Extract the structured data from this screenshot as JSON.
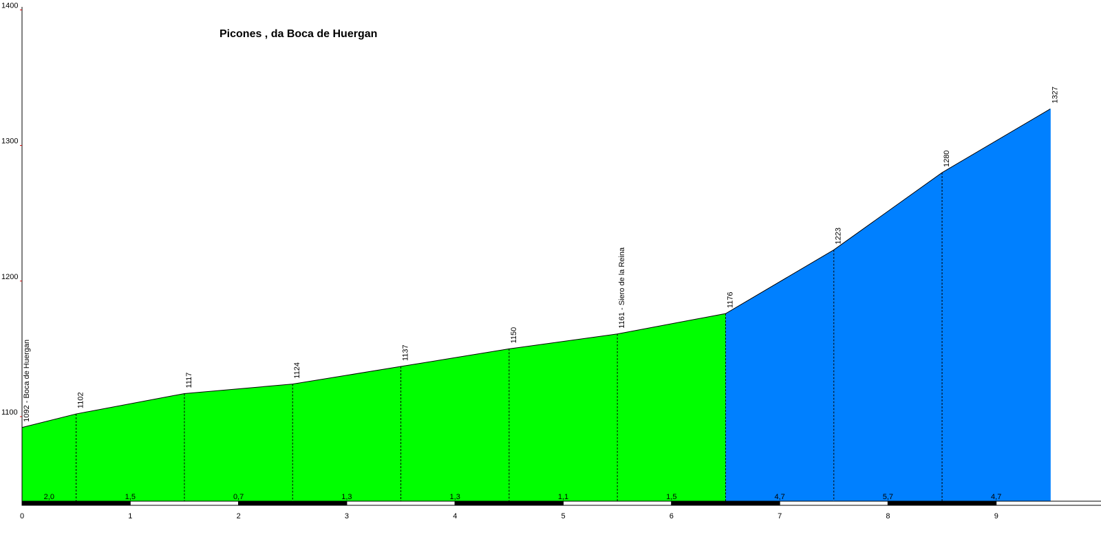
{
  "chart_data": {
    "type": "area",
    "title": "Picones , da Boca de Huergan",
    "xlabel": "",
    "ylabel": "",
    "xlim": [
      0,
      10
    ],
    "ylim": [
      1040,
      1400
    ],
    "y_ticks": [
      1100,
      1200,
      1300,
      1400
    ],
    "x_ticks": [
      0,
      1,
      2,
      3,
      4,
      5,
      6,
      7,
      8,
      9
    ],
    "points": [
      {
        "km": 0.0,
        "alt": 1092,
        "label": "1092 - Boca de Huergan"
      },
      {
        "km": 0.5,
        "alt": 1102,
        "label": "1102"
      },
      {
        "km": 1.5,
        "alt": 1117,
        "label": "1117"
      },
      {
        "km": 2.5,
        "alt": 1124,
        "label": "1124"
      },
      {
        "km": 3.5,
        "alt": 1137,
        "label": "1137"
      },
      {
        "km": 4.5,
        "alt": 1150,
        "label": "1150"
      },
      {
        "km": 5.5,
        "alt": 1161,
        "label": "1161 - Siero de la Reina"
      },
      {
        "km": 6.5,
        "alt": 1176,
        "label": "1176"
      },
      {
        "km": 7.5,
        "alt": 1223,
        "label": "1223"
      },
      {
        "km": 8.5,
        "alt": 1280,
        "label": "1280"
      },
      {
        "km": 9.5,
        "alt": 1327,
        "label": "1327"
      }
    ],
    "gradients": [
      {
        "from": 0.0,
        "to": 0.5,
        "label": "2,0",
        "color": "#00ff00"
      },
      {
        "from": 0.5,
        "to": 1.5,
        "label": "1,5",
        "color": "#00ff00"
      },
      {
        "from": 1.5,
        "to": 2.5,
        "label": "0,7",
        "color": "#00ff00"
      },
      {
        "from": 2.5,
        "to": 3.5,
        "label": "1,3",
        "color": "#00ff00"
      },
      {
        "from": 3.5,
        "to": 4.5,
        "label": "1,3",
        "color": "#00ff00"
      },
      {
        "from": 4.5,
        "to": 5.5,
        "label": "1,1",
        "color": "#00ff00"
      },
      {
        "from": 5.5,
        "to": 6.5,
        "label": "1,5",
        "color": "#00ff00"
      },
      {
        "from": 6.5,
        "to": 7.5,
        "label": "4,7",
        "color": "#0080ff"
      },
      {
        "from": 7.5,
        "to": 8.5,
        "label": "5,7",
        "color": "#0080ff"
      },
      {
        "from": 8.5,
        "to": 9.5,
        "label": "4,7",
        "color": "#0080ff"
      }
    ],
    "colors": {
      "axis": "#000000",
      "ytick_mark": "#cc0000",
      "divider": "#000000"
    }
  }
}
